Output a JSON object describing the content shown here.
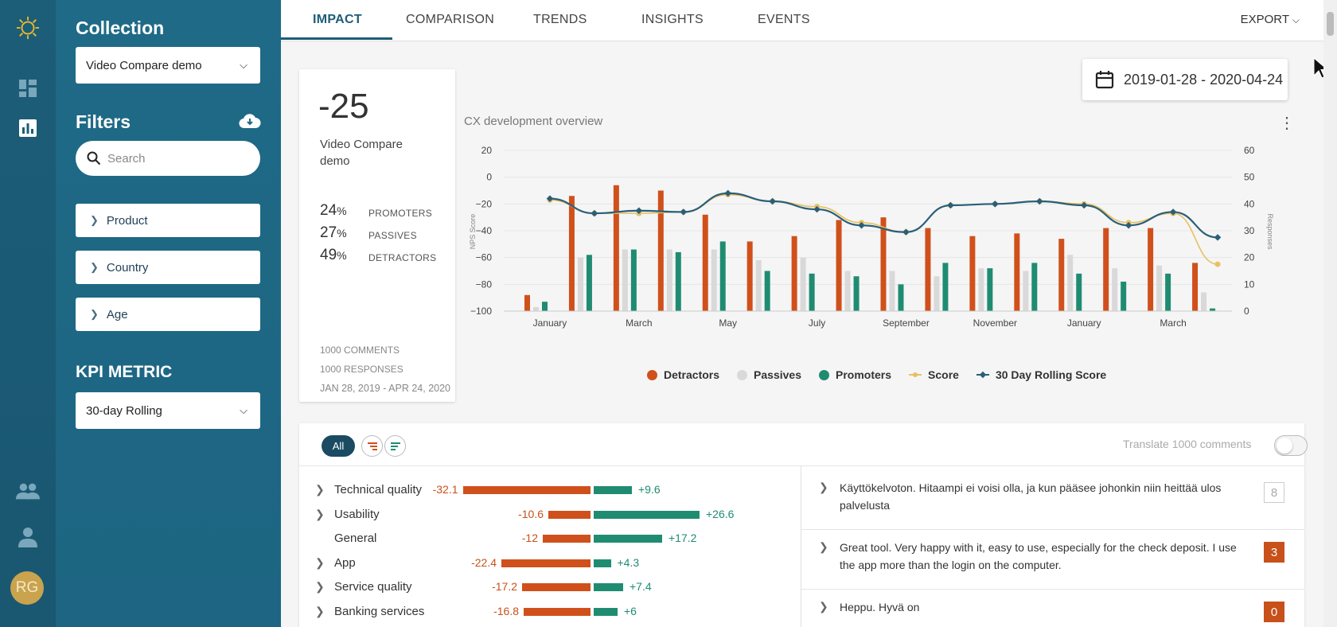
{
  "rail": {
    "avatar_initials": "RG"
  },
  "sidebar": {
    "collection_title": "Collection",
    "collection_value": "Video Compare demo",
    "filters_title": "Filters",
    "search_placeholder": "Search",
    "filters": [
      "Product",
      "Country",
      "Age"
    ],
    "kpi_title": "KPI METRIC",
    "kpi_value": "30-day Rolling"
  },
  "tabs": [
    "IMPACT",
    "COMPARISON",
    "TRENDS",
    "INSIGHTS",
    "EVENTS"
  ],
  "active_tab": "IMPACT",
  "export_label": "EXPORT",
  "date_range": "2019-01-28 - 2020-04-24",
  "kpi_card": {
    "score": "-25",
    "name": "Video Compare demo",
    "promoters_pct": "24",
    "passives_pct": "27",
    "detractors_pct": "49",
    "pct_sign": "%",
    "promoters_label": "PROMOTERS",
    "passives_label": "PASSIVES",
    "detractors_label": "DETRACTORS",
    "comments": "1000 COMMENTS",
    "responses": "1000 RESPONSES",
    "period": "JAN 28, 2019 - APR 24, 2020"
  },
  "chart_title": "CX development overview",
  "chart_data": {
    "type": "bar",
    "title": "CX development overview",
    "ylabel": "NPS Score",
    "y2label": "Responses",
    "ylim": [
      -100,
      20
    ],
    "y2lim": [
      0,
      60
    ],
    "yticks": [
      "20",
      "0",
      "−20",
      "−40",
      "−60",
      "−80",
      "−100"
    ],
    "y2ticks": [
      "60",
      "50",
      "40",
      "30",
      "20",
      "10",
      "0"
    ],
    "xticks": [
      "January",
      "March",
      "May",
      "July",
      "September",
      "November",
      "January",
      "March"
    ],
    "categories": [
      "Jan19",
      "Feb19",
      "Mar19",
      "Apr19",
      "May19",
      "Jun19",
      "Jul19",
      "Aug19",
      "Sep19",
      "Oct19",
      "Nov19",
      "Dec19",
      "Jan20",
      "Feb20",
      "Mar20",
      "Apr20"
    ],
    "series": [
      {
        "name": "Detractors",
        "color": "#d0501c",
        "axis": "right",
        "values": [
          6,
          43,
          47,
          45,
          36,
          26,
          28,
          34,
          35,
          31,
          28,
          29,
          27,
          31,
          31,
          18
        ]
      },
      {
        "name": "Passives",
        "color": "#d9d9d9",
        "axis": "right",
        "values": [
          1.5,
          20,
          23,
          23,
          23,
          19,
          20,
          15,
          15,
          13,
          16,
          15,
          21,
          16,
          17,
          7
        ]
      },
      {
        "name": "Promoters",
        "color": "#1f8c72",
        "axis": "right",
        "values": [
          3.5,
          21,
          23,
          22,
          26,
          15,
          14,
          13,
          10,
          18,
          16,
          18,
          14,
          11,
          14,
          1
        ]
      },
      {
        "name": "Score",
        "color": "#e8c060",
        "axis": "left",
        "values": [
          -17,
          -27,
          -27,
          -26,
          -13,
          -18,
          -22,
          -34,
          -41,
          -21,
          -20,
          -18,
          -20,
          -34,
          -27,
          -65
        ]
      },
      {
        "name": "30 Day Rolling Score",
        "color": "#2a5f78",
        "axis": "left",
        "values": [
          -16,
          -27,
          -25,
          -26,
          -12,
          -18,
          -24,
          -36,
          -41,
          -21,
          -20,
          -18,
          -21,
          -36,
          -26,
          -45
        ]
      }
    ],
    "legend": "bottom"
  },
  "lower": {
    "all_label": "All",
    "translate_label": "Translate 1000 comments",
    "topics": [
      {
        "name": "Technical quality",
        "neg": "-32.1",
        "pos": "+9.6",
        "neg_val": 32.1,
        "pos_val": 9.6,
        "expandable": true
      },
      {
        "name": "Usability",
        "neg": "-10.6",
        "pos": "+26.6",
        "neg_val": 10.6,
        "pos_val": 26.6,
        "expandable": true
      },
      {
        "name": "General",
        "neg": "-12",
        "pos": "+17.2",
        "neg_val": 12,
        "pos_val": 17.2,
        "expandable": false
      },
      {
        "name": "App",
        "neg": "-22.4",
        "pos": "+4.3",
        "neg_val": 22.4,
        "pos_val": 4.3,
        "expandable": true
      },
      {
        "name": "Service quality",
        "neg": "-17.2",
        "pos": "+7.4",
        "neg_val": 17.2,
        "pos_val": 7.4,
        "expandable": true
      },
      {
        "name": "Banking services",
        "neg": "-16.8",
        "pos": "+6",
        "neg_val": 16.8,
        "pos_val": 6,
        "expandable": true
      }
    ],
    "comments": [
      {
        "text": "Käyttökelvoton. Hitaampi ei voisi olla, ja kun pääsee johonkin niin heittää ulos palvelusta",
        "score": "8",
        "hot": false
      },
      {
        "text": "Great tool. Very happy with it, easy to use, especially for the check deposit. I use the app more than the login on the computer.",
        "score": "3",
        "hot": true
      },
      {
        "text": "Heppu. Hyvä on",
        "score": "0",
        "hot": true
      }
    ]
  }
}
